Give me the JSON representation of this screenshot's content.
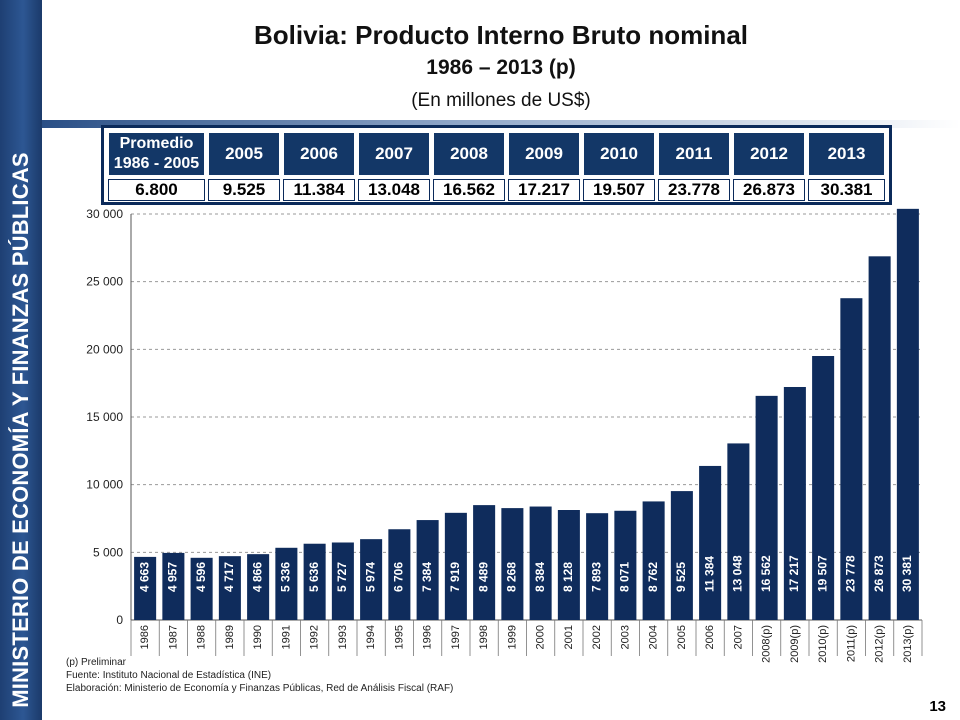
{
  "sidebar": {
    "text": "MINISTERIO DE ECONOMÍA Y FINANZAS PÚBLICAS"
  },
  "header": {
    "title": "Bolivia: Producto Interno Bruto nominal",
    "subtitle": "1986 – 2013 (p)",
    "units": "(En millones de US$)"
  },
  "summary_table": {
    "headers": [
      "Promedio 1986 - 2005",
      "2005",
      "2006",
      "2007",
      "2008",
      "2009",
      "2010",
      "2011",
      "2012",
      "2013"
    ],
    "values": [
      "6.800",
      "9.525",
      "11.384",
      "13.048",
      "16.562",
      "17.217",
      "19.507",
      "23.778",
      "26.873",
      "30.381"
    ]
  },
  "chart_data": {
    "type": "bar",
    "categories": [
      "1986",
      "1987",
      "1988",
      "1989",
      "1990",
      "1991",
      "1992",
      "1993",
      "1994",
      "1995",
      "1996",
      "1997",
      "1998",
      "1999",
      "2000",
      "2001",
      "2002",
      "2003",
      "2004",
      "2005",
      "2006",
      "2007",
      "2008(p)",
      "2009(p)",
      "2010(p)",
      "2011(p)",
      "2012(p)",
      "2013(p)"
    ],
    "values": [
      4663,
      4957,
      4596,
      4717,
      4866,
      5336,
      5636,
      5727,
      5974,
      6706,
      7384,
      7919,
      8489,
      8268,
      8384,
      8128,
      7893,
      8071,
      8762,
      9525,
      11384,
      13048,
      16562,
      17217,
      19507,
      23778,
      26873,
      30381
    ],
    "labels": [
      "4 663",
      "4 957",
      "4 596",
      "4 717",
      "4 866",
      "5 336",
      "5 636",
      "5 727",
      "5 974",
      "6 706",
      "7 384",
      "7 919",
      "8 489",
      "8 268",
      "8 384",
      "8 128",
      "7 893",
      "8 071",
      "8 762",
      "9 525",
      "11 384",
      "13 048",
      "16 562",
      "17 217",
      "19 507",
      "23 778",
      "26 873",
      "30 381"
    ],
    "ylim": [
      0,
      30000
    ],
    "yticks": [
      0,
      5000,
      10000,
      15000,
      20000,
      25000,
      30000
    ],
    "ytick_labels": [
      "0",
      "5 000",
      "10 000",
      "15 000",
      "20 000",
      "25 000",
      "30 000"
    ],
    "bar_color": "#0f2c5c",
    "grid": true
  },
  "footnotes": {
    "note1": "(p) Preliminar",
    "note2": "Fuente: Instituto Nacional de Estadística (INE)",
    "note3": "Elaboración: Ministerio de Economía y Finanzas Públicas, Red de Análisis Fiscal (RAF)"
  },
  "page_number": "13"
}
